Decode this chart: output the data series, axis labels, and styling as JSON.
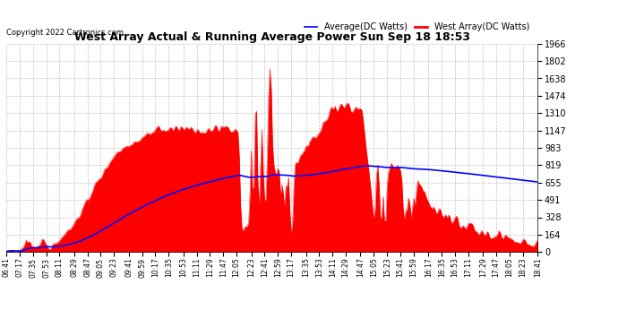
{
  "title": "West Array Actual & Running Average Power Sun Sep 18 18:53",
  "copyright": "Copyright 2022 Cartronics.com",
  "legend_avg": "Average(DC Watts)",
  "legend_west": "West Array(DC Watts)",
  "legend_avg_color": "blue",
  "legend_west_color": "red",
  "bg_color": "#ffffff",
  "plot_bg_color": "#ffffff",
  "grid_color": "#bbbbbb",
  "fill_color": "red",
  "line_color": "red",
  "avg_line_color": "blue",
  "ylim": [
    0,
    1965.6
  ],
  "yticks": [
    0.0,
    163.8,
    327.6,
    491.4,
    655.2,
    819.0,
    982.8,
    1146.6,
    1310.4,
    1474.2,
    1638.0,
    1801.8,
    1965.6
  ],
  "xtick_labels": [
    "06:41",
    "07:17",
    "07:35",
    "07:53",
    "08:11",
    "08:29",
    "08:47",
    "09:05",
    "09:23",
    "09:41",
    "09:59",
    "10:17",
    "10:35",
    "10:53",
    "11:11",
    "11:29",
    "11:47",
    "12:05",
    "12:23",
    "12:41",
    "12:59",
    "13:17",
    "13:35",
    "13:53",
    "14:11",
    "14:29",
    "14:47",
    "15:05",
    "15:23",
    "15:41",
    "15:59",
    "16:17",
    "16:35",
    "16:53",
    "17:11",
    "17:29",
    "17:47",
    "18:05",
    "18:23",
    "18:41"
  ],
  "n_points": 400
}
